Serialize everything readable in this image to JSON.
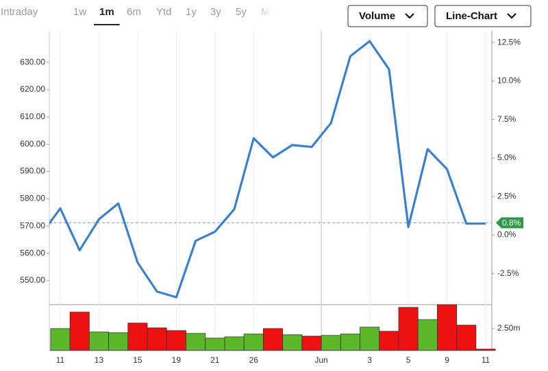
{
  "tabs": {
    "items": [
      "Intraday",
      "1w",
      "1m",
      "6m",
      "Ytd",
      "1y",
      "3y",
      "5y",
      "Max"
    ],
    "selected_index": 2
  },
  "buttons": [
    "Volume",
    "Line-Chart"
  ],
  "chart_data": [
    {
      "type": "line",
      "categories": [
        null,
        "11",
        null,
        "13",
        null,
        "15",
        null,
        "19",
        null,
        "21",
        null,
        "26",
        null,
        null,
        null,
        "Jun",
        null,
        "3",
        null,
        "5",
        null,
        "9",
        null,
        "11"
      ],
      "series": [
        {
          "color": "#3a80d0",
          "values": [
            566.8,
            576.5,
            561.1,
            572.5,
            578.3,
            556.6,
            546.0,
            543.9,
            564.6,
            567.9,
            576.2,
            602.2,
            595.2,
            599.7,
            599.0,
            607.8,
            632.3,
            637.8,
            627.5,
            569.7,
            598.2,
            590.9,
            570.9,
            570.9
          ]
        }
      ],
      "ylim": [
        541.2,
        641.6
      ],
      "yticks": [
        {
          "value": 550,
          "label": "550.00"
        },
        {
          "value": 560,
          "label": "560.00"
        },
        {
          "value": 570,
          "label": "570.00"
        },
        {
          "value": 580,
          "label": "580.00"
        },
        {
          "value": 590,
          "label": "590.00"
        },
        {
          "value": 600,
          "label": "600.00"
        },
        {
          "value": 610,
          "label": "610.00"
        },
        {
          "value": 620,
          "label": "620.00"
        },
        {
          "value": 630,
          "label": "630.00"
        }
      ],
      "y2lim": [
        -4.51,
        13.26
      ],
      "y2ticks": [
        {
          "value": -2.5,
          "label": "-2.5%"
        },
        {
          "value": 0,
          "label": "0.0%"
        },
        {
          "value": 2.5,
          "label": "2.5%"
        },
        {
          "value": 5,
          "label": "5.0%"
        },
        {
          "value": 7.5,
          "label": "7.5%"
        },
        {
          "value": 10,
          "label": "10.0%"
        },
        {
          "value": 12.5,
          "label": "12.5%"
        }
      ],
      "reference_line": {
        "value": 0.8,
        "label": "0.8%",
        "axis": "y2",
        "color": "#2e9a4a"
      },
      "grid": "x"
    },
    {
      "type": "bar",
      "values": [
        null,
        2.5,
        4.38,
        2.11,
        2.03,
        3.13,
        2.58,
        2.27,
        1.95,
        1.41,
        1.56,
        1.88,
        2.5,
        1.8,
        1.64,
        1.72,
        1.88,
        2.66,
        2.19,
        4.92,
        3.52,
        5.23,
        2.89,
        0.16
      ],
      "colors": [
        null,
        "#5cb82a",
        "#ee1111",
        "#5cb82a",
        "#5cb82a",
        "#ee1111",
        "#ee1111",
        "#ee1111",
        "#5cb82a",
        "#5cb82a",
        "#5cb82a",
        "#5cb82a",
        "#ee1111",
        "#5cb82a",
        "#ee1111",
        "#5cb82a",
        "#5cb82a",
        "#5cb82a",
        "#ee1111",
        "#ee1111",
        "#5cb82a",
        "#ee1111",
        "#ee1111",
        "#ee1111"
      ],
      "ylim": [
        0,
        5.31
      ],
      "yticks": [
        {
          "value": 2.5,
          "label": "2.50m"
        }
      ]
    }
  ]
}
